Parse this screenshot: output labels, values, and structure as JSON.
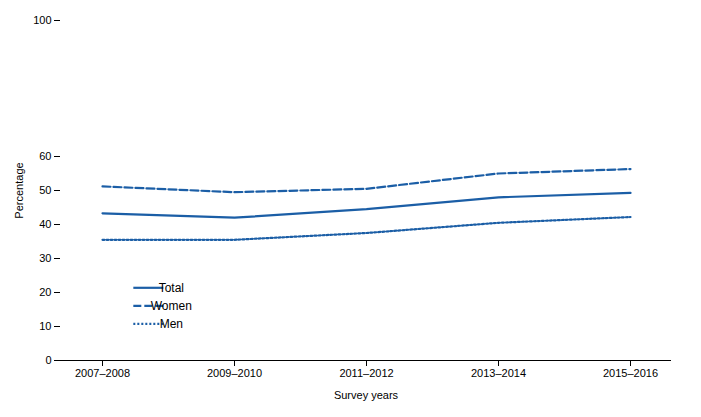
{
  "chart_data": {
    "type": "line",
    "xlabel": "Survey years",
    "ylabel": "Percentage",
    "categories": [
      "2007–2008",
      "2009–2010",
      "2011–2012",
      "2013–2014",
      "2015–2016"
    ],
    "series": [
      {
        "name": "Total",
        "color": "#1B5EA6",
        "line_style": "solid",
        "values": [
          43.3,
          42.0,
          44.5,
          48.0,
          49.3
        ]
      },
      {
        "name": "Women",
        "color": "#1B5EA6",
        "line_style": "dashed",
        "values": [
          51.2,
          49.5,
          50.5,
          55.0,
          56.3
        ]
      },
      {
        "name": "Men",
        "color": "#1B5EA6",
        "line_style": "dotted",
        "values": [
          35.5,
          35.5,
          37.5,
          40.5,
          42.2
        ]
      }
    ],
    "ylim": [
      0,
      100
    ],
    "yticks": [
      0,
      10,
      20,
      30,
      40,
      50,
      60,
      100
    ],
    "legend": "lower left"
  }
}
